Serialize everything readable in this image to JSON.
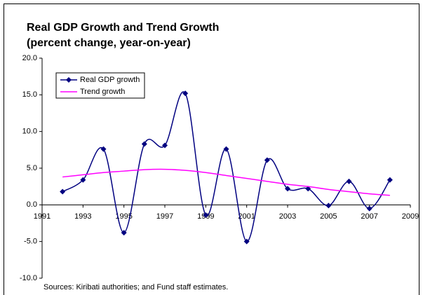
{
  "chart_data": {
    "type": "line",
    "title": "Real GDP Growth and Trend Growth",
    "subtitle": "(percent change, year-on-year)",
    "note": "Sources: Kiribati authorities; and Fund staff estimates.",
    "x": [
      1992,
      1993,
      1994,
      1995,
      1996,
      1997,
      1998,
      1999,
      2000,
      2001,
      2002,
      2003,
      2004,
      2005,
      2006,
      2007,
      2008
    ],
    "series": [
      {
        "name": "Real GDP growth",
        "color": "#000080",
        "marker": "diamond",
        "values": [
          1.8,
          3.4,
          7.6,
          -3.8,
          8.3,
          8.1,
          15.2,
          -1.4,
          7.6,
          -5.0,
          6.1,
          2.2,
          2.2,
          -0.1,
          3.2,
          -0.5,
          3.4
        ]
      },
      {
        "name": "Trend growth",
        "color": "#ff00ff",
        "values": [
          3.8,
          4.1,
          4.4,
          4.6,
          4.8,
          4.85,
          4.7,
          4.4,
          4.0,
          3.6,
          3.2,
          2.8,
          2.5,
          2.1,
          1.8,
          1.5,
          1.3
        ]
      }
    ],
    "xlim": [
      1991,
      2009
    ],
    "xticks": [
      1991,
      1993,
      1995,
      1997,
      1999,
      2001,
      2003,
      2005,
      2007,
      2009
    ],
    "ylim": [
      -10,
      20
    ],
    "yticks": [
      {
        "value": -10,
        "label": "-10.0"
      },
      {
        "value": -5,
        "label": "-5.0"
      },
      {
        "value": 0,
        "label": "0.0"
      },
      {
        "value": 5,
        "label": "5.0"
      },
      {
        "value": 10,
        "label": "10.0"
      },
      {
        "value": 15,
        "label": "15.0"
      },
      {
        "value": 20,
        "label": "20.0"
      }
    ],
    "legend": "upper left",
    "grid": false
  }
}
